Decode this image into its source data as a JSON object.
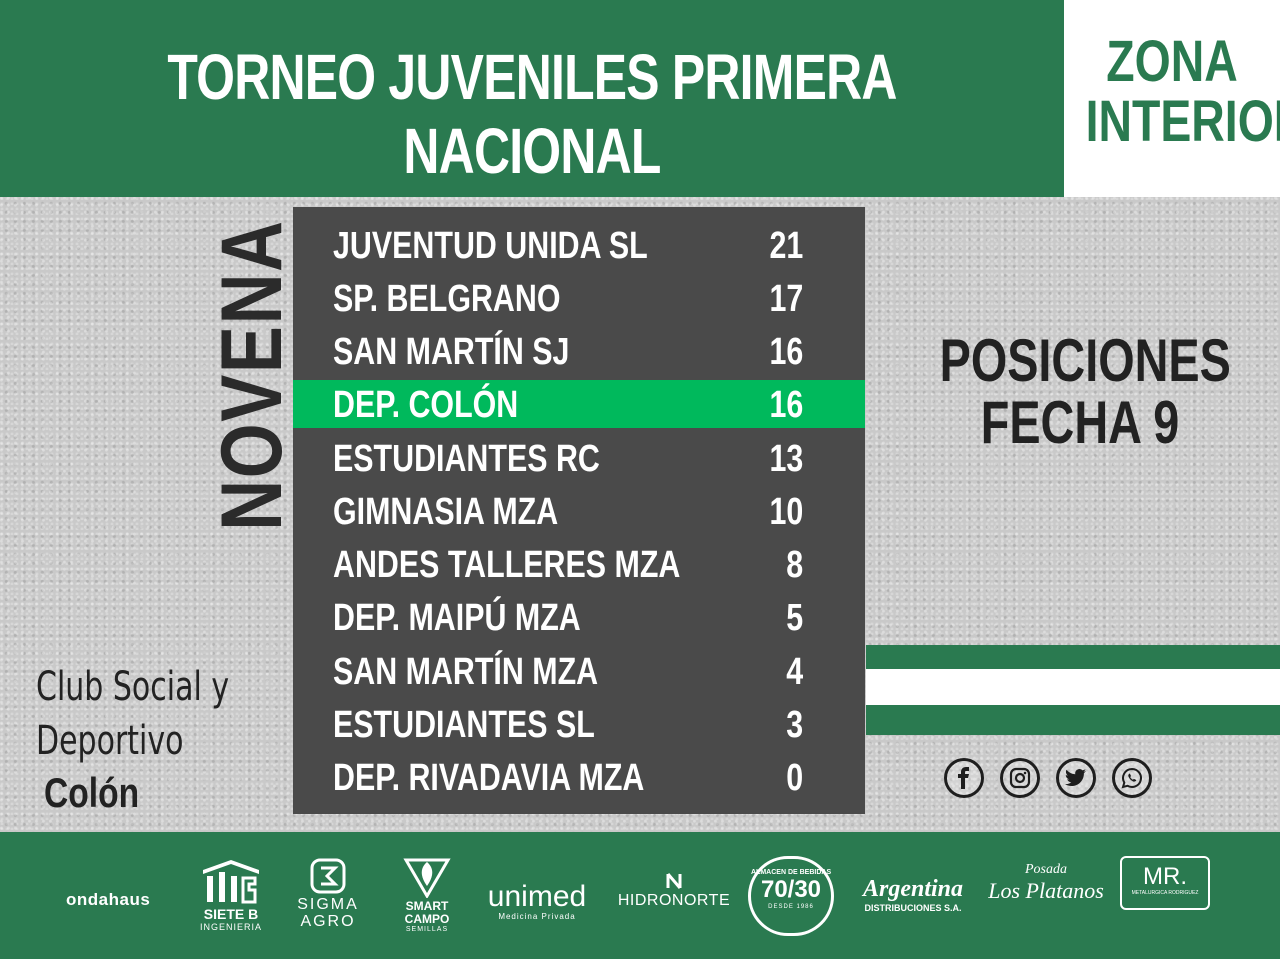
{
  "header": {
    "title": "TORNEO JUVENILES PRIMERA NACIONAL",
    "zone_line_1": "ZONA",
    "zone_line_2": "INTERIOR"
  },
  "category": "NOVENA",
  "standings": [
    {
      "team": "JUVENTUD UNIDA SL",
      "points": "21",
      "highlight": false
    },
    {
      "team": "SP. BELGRANO",
      "points": "17",
      "highlight": false
    },
    {
      "team": "SAN MARTÍN SJ",
      "points": "16",
      "highlight": false
    },
    {
      "team": "DEP. COLÓN",
      "points": "16",
      "highlight": true
    },
    {
      "team": "ESTUDIANTES RC",
      "points": "13",
      "highlight": false
    },
    {
      "team": "GIMNASIA MZA",
      "points": "10",
      "highlight": false
    },
    {
      "team": "ANDES TALLERES MZA",
      "points": "8",
      "highlight": false
    },
    {
      "team": "DEP. MAIPÚ MZA",
      "points": "5",
      "highlight": false
    },
    {
      "team": "SAN MARTÍN MZA",
      "points": "4",
      "highlight": false
    },
    {
      "team": "ESTUDIANTES SL",
      "points": "3",
      "highlight": false
    },
    {
      "team": "DEP. RIVADAVIA MZA",
      "points": "0",
      "highlight": false
    }
  ],
  "side_title": {
    "line_1": "POSICIONES",
    "line_2": "FECHA 9"
  },
  "club": {
    "line_1": "Club Social y",
    "line_2": "Deportivo",
    "line_3": "Colón"
  },
  "social_icons": [
    "facebook-icon",
    "instagram-icon",
    "twitter-icon",
    "whatsapp-icon"
  ],
  "sponsors": {
    "ondahaus": "ondahaus",
    "siete_b": "SIETE B",
    "siete_b_sub": "INGENIERIA",
    "sigma_1": "SIGMA",
    "sigma_2": "AGRO",
    "smart_1": "SMART",
    "smart_2": "CAMPO",
    "smart_sub": "SEMILLAS",
    "unimed": "unimed",
    "unimed_sub": "Medicina Privada",
    "hidronorte": "HIDRONORTE",
    "almacen": "ALMACEN DE BEBIDAS",
    "almacen_num": "70/30",
    "almacen_sub": "DESDE 1986",
    "argentina": "Argentina",
    "argentina_sub": "DISTRIBUCIONES S.A.",
    "posada_1": "Posada",
    "posada_2": "Los Platanos",
    "mr": "MR.",
    "mr_sub": "METALURGICA RODRIGUEZ"
  },
  "colors": {
    "brand_green": "#2a7a50",
    "highlight_green": "#00b95c",
    "table_bg": "#4a4a4a"
  }
}
